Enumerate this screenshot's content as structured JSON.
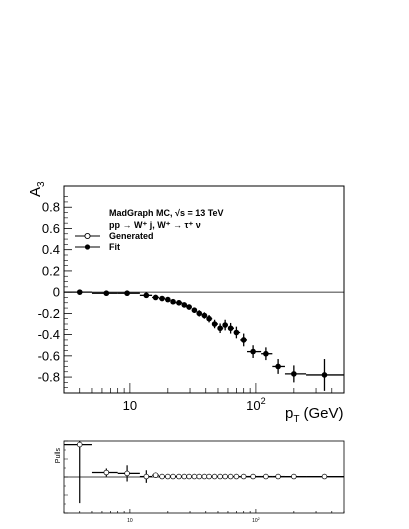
{
  "chart_data": [
    {
      "type": "scatter",
      "xscale": "log",
      "xlim": [
        3,
        500
      ],
      "ylim": [
        -0.95,
        1.0
      ],
      "ylabel": "A",
      "ylabel_sub": "3",
      "xlabel": "p",
      "xlabel_sub": "T",
      "xlabel_unit": "(GeV)",
      "xtick_labels": [
        "10",
        "10"
      ],
      "xtick_exponents": [
        "",
        "2"
      ],
      "ytick_labels": [
        "0.8",
        "0.6",
        "0.4",
        "0.2",
        "0",
        "-0.2",
        "-0.4",
        "-0.6",
        "-0.8"
      ],
      "ytick_values": [
        0.8,
        0.6,
        0.4,
        0.2,
        0,
        -0.2,
        -0.4,
        -0.6,
        -0.8
      ],
      "annotation_line1": "MadGraph MC, √s = 13 TeV",
      "annotation_line2": "pp → W⁺ j, W⁺ → τ⁺ ν",
      "legend": [
        "Generated",
        "Fit"
      ],
      "grid": false,
      "legend_position": "top-left",
      "series": [
        {
          "name": "Generated",
          "x": [
            4,
            6.5,
            9.5,
            13.5,
            16,
            18,
            20,
            22,
            24.5,
            27,
            29.5,
            32.5,
            35.5,
            39,
            42.5,
            47,
            52,
            57,
            63,
            70,
            80,
            95,
            120,
            150,
            200,
            350
          ],
          "y": [
            0,
            -0.01,
            -0.01,
            -0.03,
            -0.05,
            -0.06,
            -0.07,
            -0.09,
            -0.1,
            -0.12,
            -0.14,
            -0.17,
            -0.2,
            -0.22,
            -0.25,
            -0.3,
            -0.34,
            -0.31,
            -0.34,
            -0.38,
            -0.45,
            -0.56,
            -0.58,
            -0.7,
            -0.77,
            -0.78
          ]
        },
        {
          "name": "Fit",
          "x": [
            4,
            6.5,
            9.5,
            13.5,
            16,
            18,
            20,
            22,
            24.5,
            27,
            29.5,
            32.5,
            35.5,
            39,
            42.5,
            47,
            52,
            57,
            63,
            70,
            80,
            95,
            120,
            150,
            200,
            350
          ],
          "y": [
            0,
            -0.01,
            -0.01,
            -0.03,
            -0.05,
            -0.06,
            -0.07,
            -0.09,
            -0.1,
            -0.12,
            -0.14,
            -0.17,
            -0.2,
            -0.22,
            -0.25,
            -0.3,
            -0.34,
            -0.31,
            -0.34,
            -0.38,
            -0.45,
            -0.56,
            -0.58,
            -0.7,
            -0.77,
            -0.78
          ],
          "xlo": [
            3,
            5,
            8,
            12,
            15,
            17,
            19,
            21,
            23,
            26,
            28,
            31,
            34,
            37,
            41,
            45,
            50,
            55,
            60,
            67,
            75,
            85,
            110,
            135,
            170,
            250
          ],
          "xhi": [
            5,
            8,
            12,
            15,
            17,
            19,
            21,
            23,
            26,
            28,
            31,
            34,
            37,
            41,
            45,
            50,
            55,
            60,
            67,
            75,
            85,
            110,
            135,
            170,
            250,
            500
          ],
          "yerr": [
            0.008,
            0.01,
            0.01,
            0.015,
            0.015,
            0.015,
            0.015,
            0.015,
            0.02,
            0.02,
            0.025,
            0.025,
            0.03,
            0.03,
            0.035,
            0.04,
            0.045,
            0.05,
            0.05,
            0.055,
            0.06,
            0.06,
            0.06,
            0.07,
            0.08,
            0.15
          ]
        }
      ]
    },
    {
      "type": "scatter",
      "xscale": "log",
      "xlim": [
        3,
        500
      ],
      "ylim": [
        -4,
        4
      ],
      "ylabel": "Pulls",
      "xtick_labels": [
        "10",
        "10"
      ],
      "xtick_exponents": [
        "",
        "2"
      ],
      "series": [
        {
          "name": "Pulls",
          "x": [
            4,
            6.5,
            9.5,
            13.5,
            16,
            18,
            20,
            22,
            24.5,
            27,
            29.5,
            32.5,
            35.5,
            39,
            42.5,
            47,
            52,
            57,
            63,
            70,
            80,
            95,
            120,
            150,
            200,
            350
          ],
          "y": [
            3.6,
            0.5,
            0.4,
            0.05,
            0.2,
            0.05,
            0.05,
            0.05,
            0.05,
            0.05,
            0.05,
            0.05,
            0.05,
            0.05,
            0.05,
            0.05,
            0.05,
            0.05,
            0.05,
            0.05,
            0.05,
            0.05,
            0.05,
            0.05,
            0.05,
            0.05
          ],
          "yerr": [
            6.5,
            0.45,
            0.9,
            0.7,
            0.3,
            0.1,
            0.1,
            0.1,
            0.1,
            0.1,
            0.1,
            0.1,
            0.1,
            0.1,
            0.1,
            0.1,
            0.1,
            0.1,
            0.1,
            0.1,
            0.1,
            0.1,
            0.1,
            0.1,
            0.1,
            0.1
          ],
          "xlo": [
            3,
            5,
            8,
            12,
            15,
            17,
            19,
            21,
            23,
            26,
            28,
            31,
            34,
            37,
            41,
            45,
            50,
            55,
            60,
            67,
            75,
            85,
            110,
            135,
            170,
            250
          ],
          "xhi": [
            5,
            8,
            12,
            15,
            17,
            19,
            21,
            23,
            26,
            28,
            31,
            34,
            37,
            41,
            45,
            50,
            55,
            60,
            67,
            75,
            85,
            110,
            135,
            170,
            250,
            500
          ]
        }
      ]
    }
  ]
}
